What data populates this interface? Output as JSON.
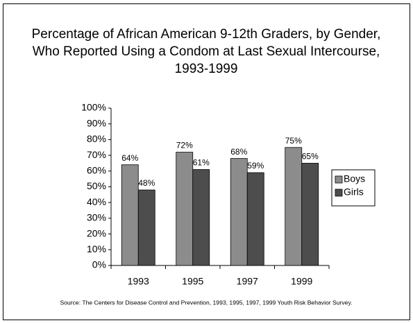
{
  "chart_data": {
    "type": "bar",
    "title": [
      "Percentage of African American 9-12th Graders, by Gender,",
      "Who Reported Using a Condom at Last Sexual Intercourse,",
      "1993-1999"
    ],
    "categories": [
      "1993",
      "1995",
      "1997",
      "1999"
    ],
    "series": [
      {
        "name": "Boys",
        "color": "#8c8c8c",
        "values": [
          64,
          72,
          68,
          75
        ],
        "value_labels": [
          "64%",
          "72%",
          "68%",
          "75%"
        ]
      },
      {
        "name": "Girls",
        "color": "#4d4d4d",
        "values": [
          48,
          61,
          59,
          65
        ],
        "value_labels": [
          "48%",
          "61%",
          "59%",
          "65%"
        ]
      }
    ],
    "ylim": [
      0,
      100
    ],
    "yticks": [
      {
        "value": 0,
        "label": "0%"
      },
      {
        "value": 10,
        "label": "10%"
      },
      {
        "value": 20,
        "label": "20%"
      },
      {
        "value": 30,
        "label": "30%"
      },
      {
        "value": 40,
        "label": "40%"
      },
      {
        "value": 50,
        "label": "50%"
      },
      {
        "value": 60,
        "label": "60%"
      },
      {
        "value": 70,
        "label": "70%"
      },
      {
        "value": 80,
        "label": "80%"
      },
      {
        "value": 90,
        "label": "90%"
      },
      {
        "value": 100,
        "label": "100%"
      }
    ],
    "grid": false,
    "legend": "right",
    "source": "Source: The Centers for Disease Control and Prevention, 1993, 1995, 1997, 1999 Youth Risk Behavior Survey."
  }
}
